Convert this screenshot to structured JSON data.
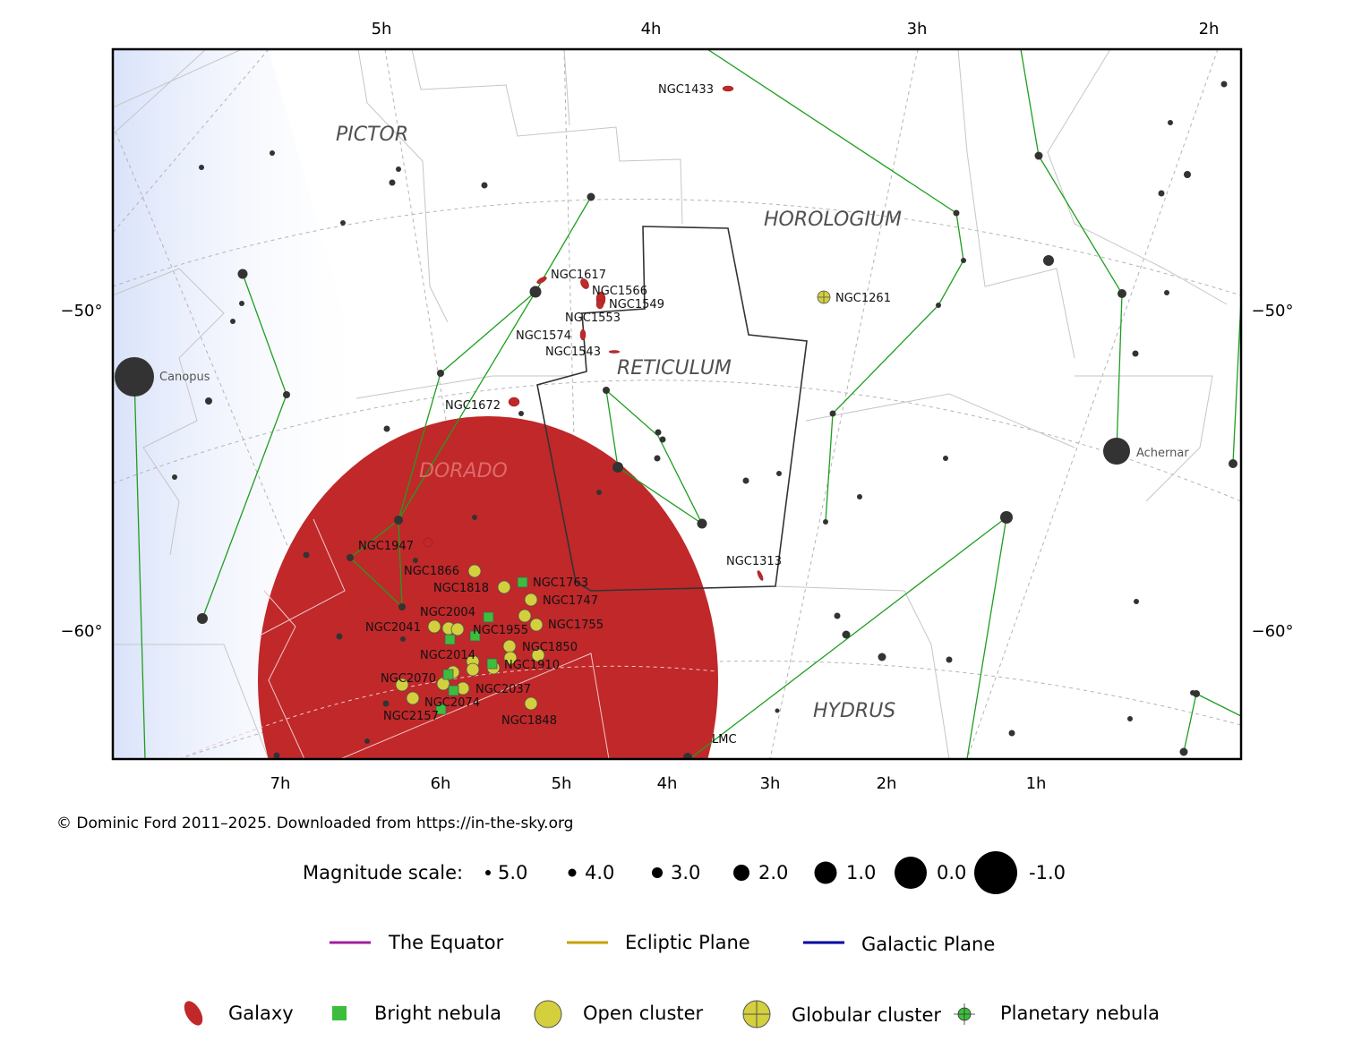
{
  "credit": "© Dominic Ford 2011–2025. Downloaded from https://in-the-sky.org",
  "axes": {
    "top_ra": [
      "5h",
      "4h",
      "3h",
      "2h"
    ],
    "bottom_ra": [
      "7h",
      "6h",
      "5h",
      "4h",
      "3h",
      "2h",
      "1h"
    ],
    "left_dec": [
      "−50°",
      "−60°"
    ],
    "right_dec": [
      "−50°",
      "−60°"
    ]
  },
  "constellations": [
    "PICTOR",
    "HOROLOGIUM",
    "RETICULUM",
    "DORADO",
    "HYDRUS"
  ],
  "stars": {
    "named": [
      "Canopus",
      "Achernar"
    ],
    "lmc_label": "LMC"
  },
  "objects": {
    "galaxies": [
      "NGC1433",
      "NGC1617",
      "NGC1566",
      "NGC1549",
      "NGC1553",
      "NGC1574",
      "NGC1543",
      "NGC1672",
      "NGC1313",
      "NGC1947"
    ],
    "globular_clusters": [
      "NGC1261"
    ],
    "lmc_objects": [
      "NGC1866",
      "NGC1763",
      "NGC1818",
      "NGC1747",
      "NGC2004",
      "NGC1755",
      "NGC2041",
      "NGC1955",
      "NGC1850",
      "NGC2014",
      "NGC1910",
      "NGC2070",
      "NGC2037",
      "NGC2074",
      "NGC2157",
      "NGC1848"
    ]
  },
  "magnitude_scale": {
    "title": "Magnitude scale:",
    "values": [
      "5.0",
      "4.0",
      "3.0",
      "2.0",
      "1.0",
      "0.0",
      "-1.0"
    ]
  },
  "line_legend": [
    {
      "label": "The Equator",
      "color": "#a020a0"
    },
    {
      "label": "Ecliptic Plane",
      "color": "#c8a000"
    },
    {
      "label": "Galactic Plane",
      "color": "#0000a0"
    }
  ],
  "object_legend": [
    {
      "label": "Galaxy",
      "icon": "galaxy-icon",
      "color": "#c0282a"
    },
    {
      "label": "Bright nebula",
      "icon": "bright-nebula-icon",
      "color": "#3cbe3c"
    },
    {
      "label": "Open cluster",
      "icon": "open-cluster-icon",
      "color": "#d4cf3c"
    },
    {
      "label": "Globular cluster",
      "icon": "globular-cluster-icon",
      "color": "#d4cf3c"
    },
    {
      "label": "Planetary nebula",
      "icon": "planetary-nebula-icon",
      "color": "#3cbe3c"
    }
  ],
  "colors": {
    "constellation_lines": "#1f9e1f",
    "boundaries": "#c8c8c8",
    "milky_way": "#dfe7fb",
    "lmc_fill": "#c0282a",
    "star": "#333333"
  }
}
